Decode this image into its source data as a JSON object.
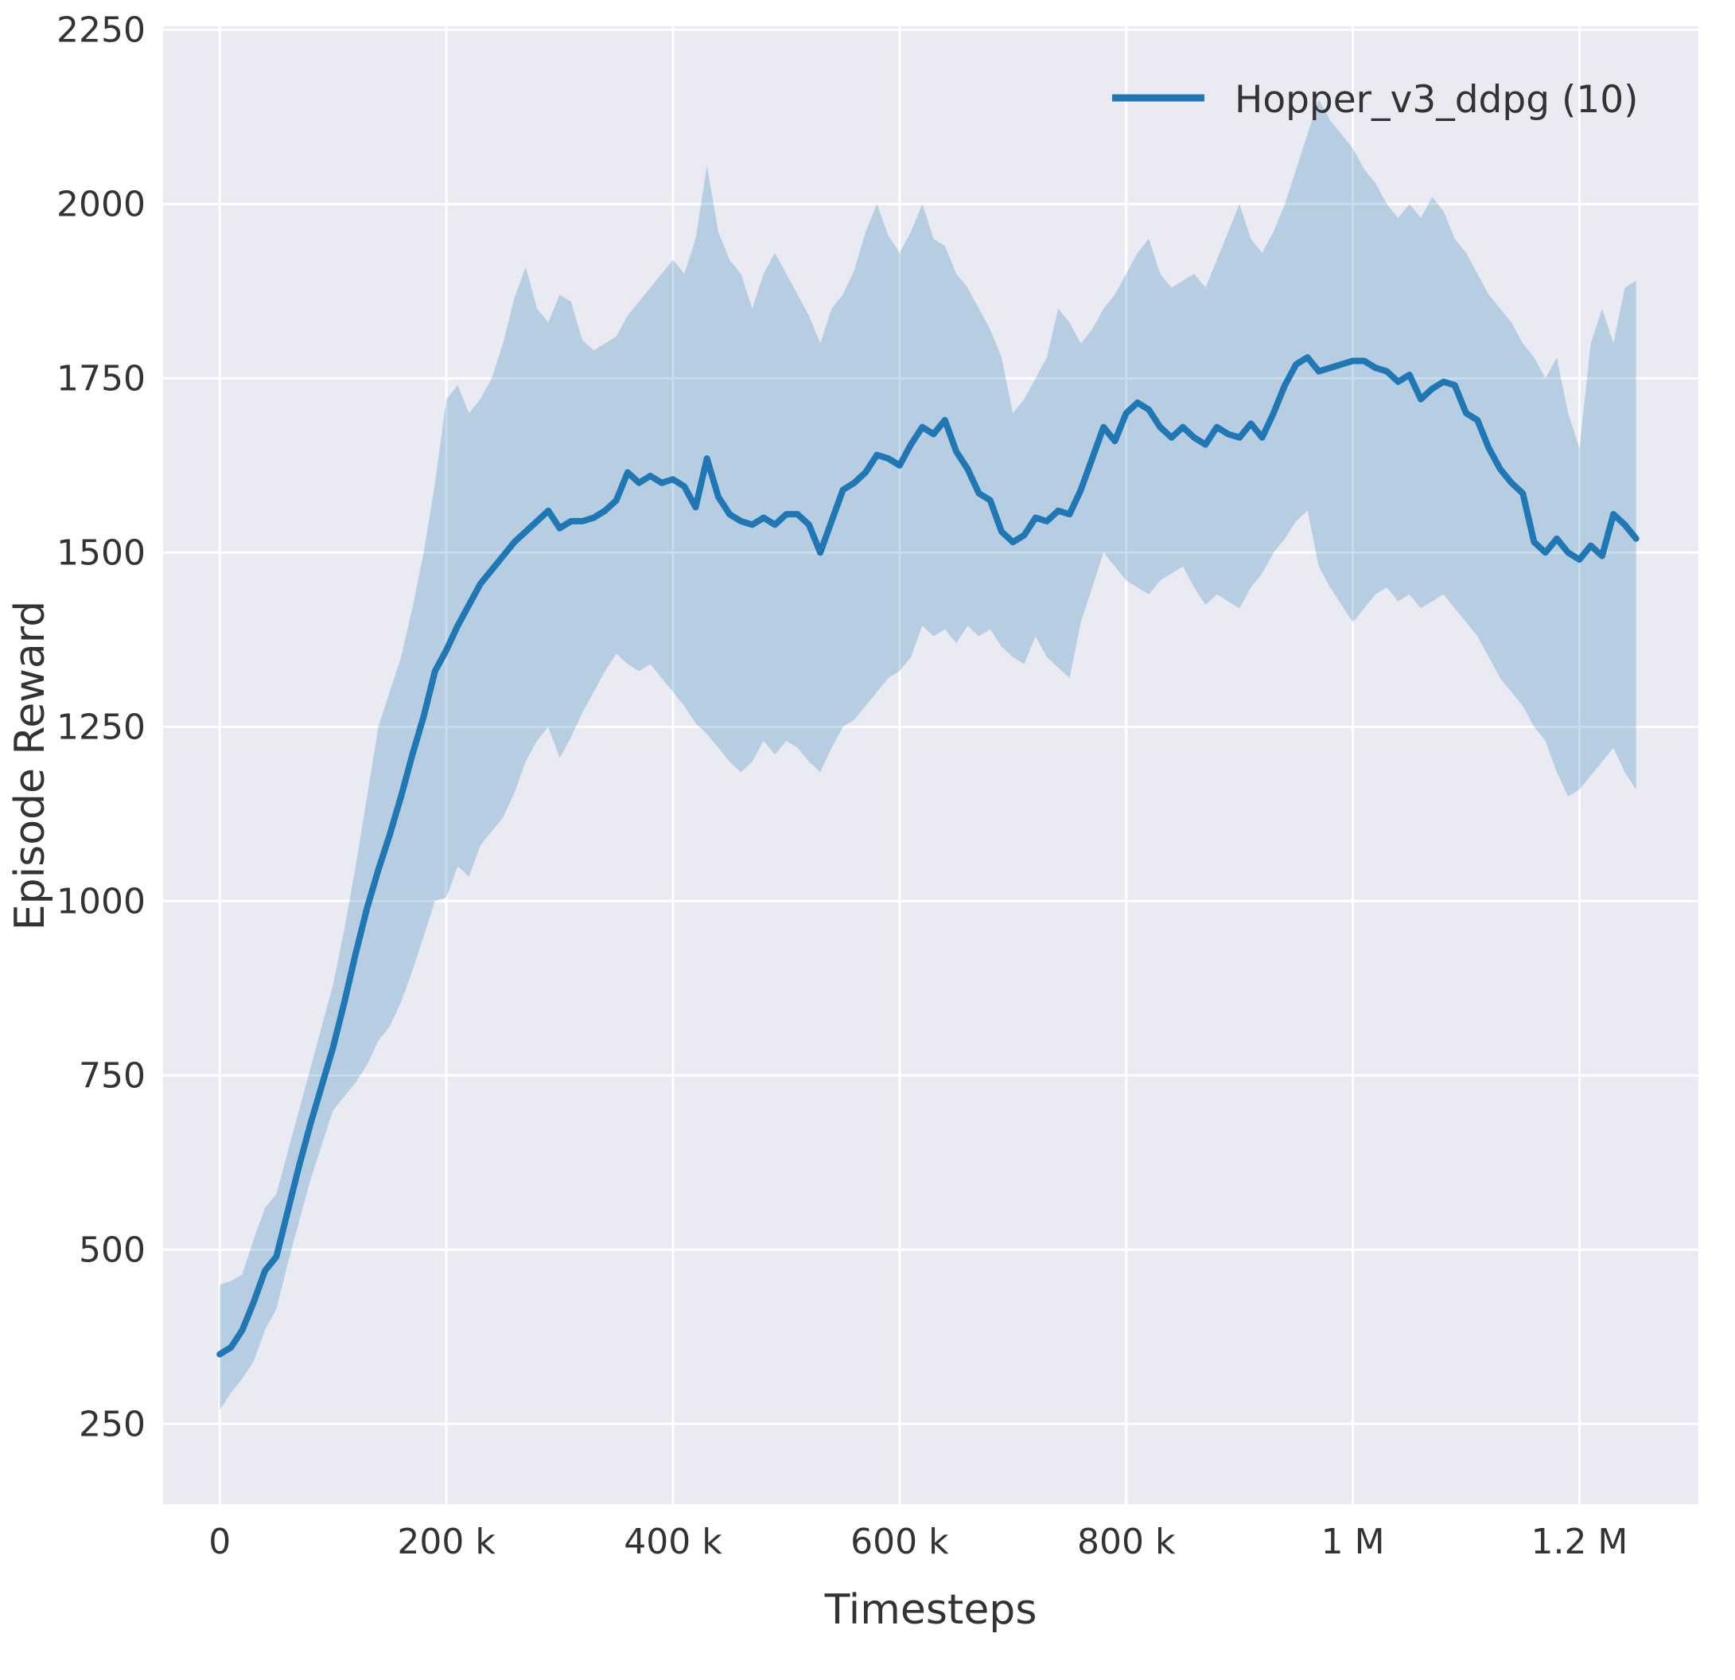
{
  "figure": {
    "bg_color": "#ffffff",
    "plot_bg_color": "#eaeaf2",
    "grid_color": "#ffffff",
    "text_color": "#333333"
  },
  "chart_data": {
    "type": "line",
    "title": "",
    "xlabel": "Timesteps",
    "ylabel": "Episode Reward",
    "grid": true,
    "legend_position": "upper right",
    "xlim": [
      -50000,
      1305000
    ],
    "ylim": [
      135,
      2255
    ],
    "x_ticks": [
      0,
      200000,
      400000,
      600000,
      800000,
      1000000,
      1200000
    ],
    "x_tick_labels": [
      "0",
      "200 k",
      "400 k",
      "600 k",
      "800 k",
      "1 M",
      "1.2 M"
    ],
    "y_ticks": [
      250,
      500,
      750,
      1000,
      1250,
      1500,
      1750,
      2000,
      2250
    ],
    "y_tick_labels": [
      "250",
      "500",
      "750",
      "1000",
      "1250",
      "1500",
      "1750",
      "2000",
      "2250"
    ],
    "series": [
      {
        "name": "Hopper_v3_ddpg (10)",
        "color": "#1f77b4",
        "band_opacity": 0.25,
        "line_width": 8,
        "x": [
          0,
          10000,
          20000,
          30000,
          40000,
          50000,
          60000,
          70000,
          80000,
          90000,
          100000,
          110000,
          120000,
          130000,
          140000,
          150000,
          160000,
          170000,
          180000,
          190000,
          200000,
          210000,
          220000,
          230000,
          240000,
          250000,
          260000,
          270000,
          280000,
          290000,
          300000,
          310000,
          320000,
          330000,
          340000,
          350000,
          360000,
          370000,
          380000,
          390000,
          400000,
          410000,
          420000,
          430000,
          440000,
          450000,
          460000,
          470000,
          480000,
          490000,
          500000,
          510000,
          520000,
          530000,
          540000,
          550000,
          560000,
          570000,
          580000,
          590000,
          600000,
          610000,
          620000,
          630000,
          640000,
          650000,
          660000,
          670000,
          680000,
          690000,
          700000,
          710000,
          720000,
          730000,
          740000,
          750000,
          760000,
          770000,
          780000,
          790000,
          800000,
          810000,
          820000,
          830000,
          840000,
          850000,
          860000,
          870000,
          880000,
          890000,
          900000,
          910000,
          920000,
          930000,
          940000,
          950000,
          960000,
          970000,
          980000,
          990000,
          1000000,
          1010000,
          1020000,
          1030000,
          1040000,
          1050000,
          1060000,
          1070000,
          1080000,
          1090000,
          1100000,
          1110000,
          1120000,
          1130000,
          1140000,
          1150000,
          1160000,
          1170000,
          1180000,
          1190000,
          1200000,
          1210000,
          1220000,
          1230000,
          1240000,
          1250000
        ],
        "mean": [
          350,
          360,
          385,
          425,
          470,
          490,
          555,
          620,
          680,
          735,
          790,
          855,
          925,
          990,
          1045,
          1095,
          1150,
          1210,
          1265,
          1330,
          1360,
          1395,
          1425,
          1455,
          1475,
          1495,
          1515,
          1530,
          1545,
          1560,
          1535,
          1545,
          1545,
          1550,
          1560,
          1575,
          1615,
          1600,
          1610,
          1600,
          1605,
          1595,
          1565,
          1635,
          1580,
          1555,
          1545,
          1540,
          1550,
          1540,
          1555,
          1555,
          1540,
          1500,
          1545,
          1590,
          1600,
          1615,
          1640,
          1635,
          1625,
          1655,
          1680,
          1670,
          1690,
          1645,
          1620,
          1585,
          1575,
          1530,
          1515,
          1525,
          1550,
          1545,
          1560,
          1555,
          1590,
          1635,
          1680,
          1660,
          1700,
          1715,
          1705,
          1680,
          1665,
          1680,
          1665,
          1655,
          1680,
          1670,
          1665,
          1685,
          1665,
          1700,
          1740,
          1770,
          1780,
          1760,
          1765,
          1770,
          1775,
          1775,
          1765,
          1760,
          1745,
          1755,
          1720,
          1735,
          1745,
          1740,
          1700,
          1690,
          1650,
          1620,
          1600,
          1585,
          1515,
          1500,
          1520,
          1500,
          1490,
          1510,
          1495,
          1555,
          1540,
          1520
        ],
        "lower": [
          270,
          295,
          315,
          340,
          385,
          415,
          480,
          540,
          600,
          650,
          700,
          720,
          740,
          765,
          800,
          820,
          855,
          900,
          950,
          1000,
          1005,
          1050,
          1035,
          1080,
          1100,
          1120,
          1155,
          1200,
          1230,
          1250,
          1205,
          1235,
          1270,
          1300,
          1330,
          1355,
          1340,
          1330,
          1340,
          1320,
          1300,
          1280,
          1255,
          1240,
          1220,
          1200,
          1185,
          1200,
          1230,
          1210,
          1230,
          1220,
          1200,
          1185,
          1220,
          1250,
          1260,
          1280,
          1300,
          1320,
          1330,
          1350,
          1395,
          1380,
          1390,
          1370,
          1395,
          1380,
          1390,
          1365,
          1350,
          1340,
          1380,
          1350,
          1335,
          1320,
          1400,
          1450,
          1500,
          1480,
          1460,
          1450,
          1440,
          1460,
          1470,
          1480,
          1450,
          1425,
          1440,
          1430,
          1420,
          1450,
          1470,
          1500,
          1520,
          1545,
          1560,
          1480,
          1450,
          1425,
          1400,
          1420,
          1440,
          1450,
          1430,
          1440,
          1420,
          1430,
          1440,
          1420,
          1400,
          1380,
          1350,
          1320,
          1300,
          1280,
          1250,
          1230,
          1185,
          1150,
          1160,
          1180,
          1200,
          1220,
          1185,
          1160
        ],
        "upper": [
          450,
          455,
          465,
          515,
          560,
          580,
          640,
          700,
          760,
          820,
          880,
          960,
          1050,
          1150,
          1250,
          1300,
          1350,
          1420,
          1500,
          1600,
          1720,
          1740,
          1700,
          1720,
          1750,
          1800,
          1865,
          1910,
          1850,
          1830,
          1870,
          1860,
          1805,
          1790,
          1800,
          1810,
          1840,
          1860,
          1880,
          1900,
          1920,
          1900,
          1950,
          2055,
          1960,
          1920,
          1900,
          1850,
          1900,
          1930,
          1900,
          1870,
          1840,
          1800,
          1850,
          1870,
          1905,
          1960,
          2000,
          1955,
          1930,
          1960,
          2000,
          1950,
          1940,
          1900,
          1880,
          1850,
          1820,
          1780,
          1700,
          1720,
          1750,
          1780,
          1850,
          1830,
          1800,
          1820,
          1850,
          1870,
          1900,
          1930,
          1950,
          1900,
          1880,
          1890,
          1900,
          1880,
          1920,
          1960,
          2000,
          1950,
          1930,
          1960,
          2000,
          2050,
          2100,
          2150,
          2120,
          2100,
          2080,
          2050,
          2030,
          2000,
          1980,
          2000,
          1980,
          2010,
          1990,
          1950,
          1930,
          1900,
          1870,
          1850,
          1830,
          1800,
          1780,
          1750,
          1780,
          1700,
          1650,
          1800,
          1850,
          1800,
          1880,
          1890
        ]
      }
    ]
  }
}
